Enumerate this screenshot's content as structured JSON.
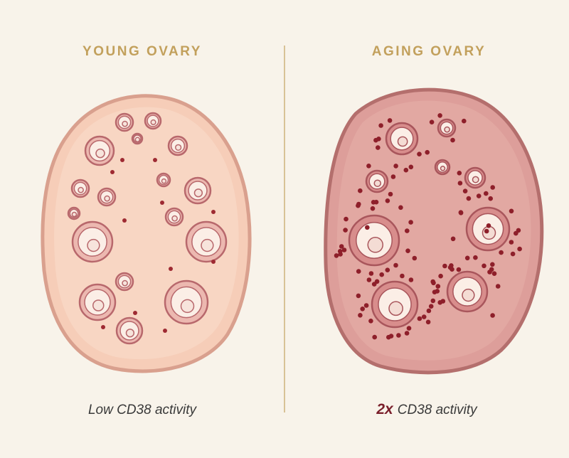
{
  "panels": [
    {
      "title": "YOUNG OVARY",
      "caption": "Low CD38 activity"
    },
    {
      "title": "AGING OVARY",
      "caption_emphasis": "2x",
      "caption": "CD38 activity"
    }
  ]
}
